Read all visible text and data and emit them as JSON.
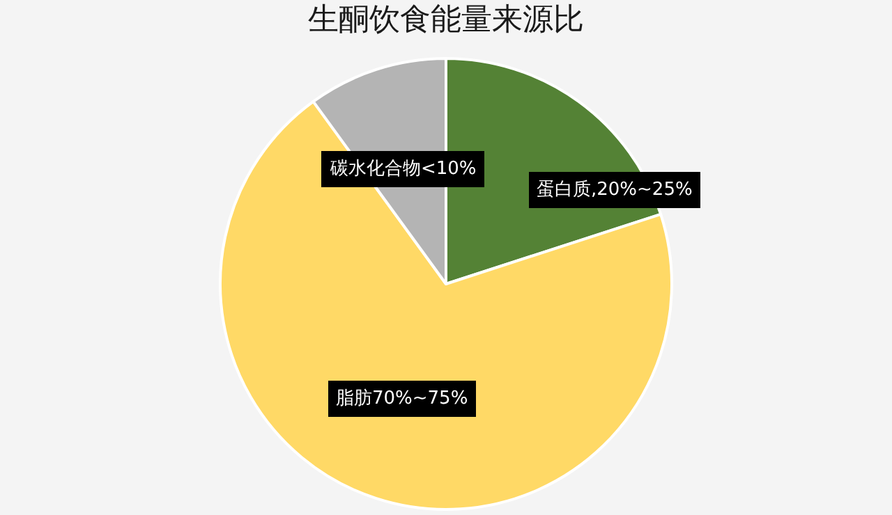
{
  "chart_data": {
    "type": "pie",
    "title": "生酮饮食能量来源比",
    "categories": [
      "蛋白质,20%~25%",
      "脂肪70%~75%",
      "碳水化合物<10%"
    ],
    "values": [
      20,
      70,
      10
    ],
    "colors": [
      "#548235",
      "#ffd966",
      "#b4b4b4"
    ],
    "legend": false
  }
}
